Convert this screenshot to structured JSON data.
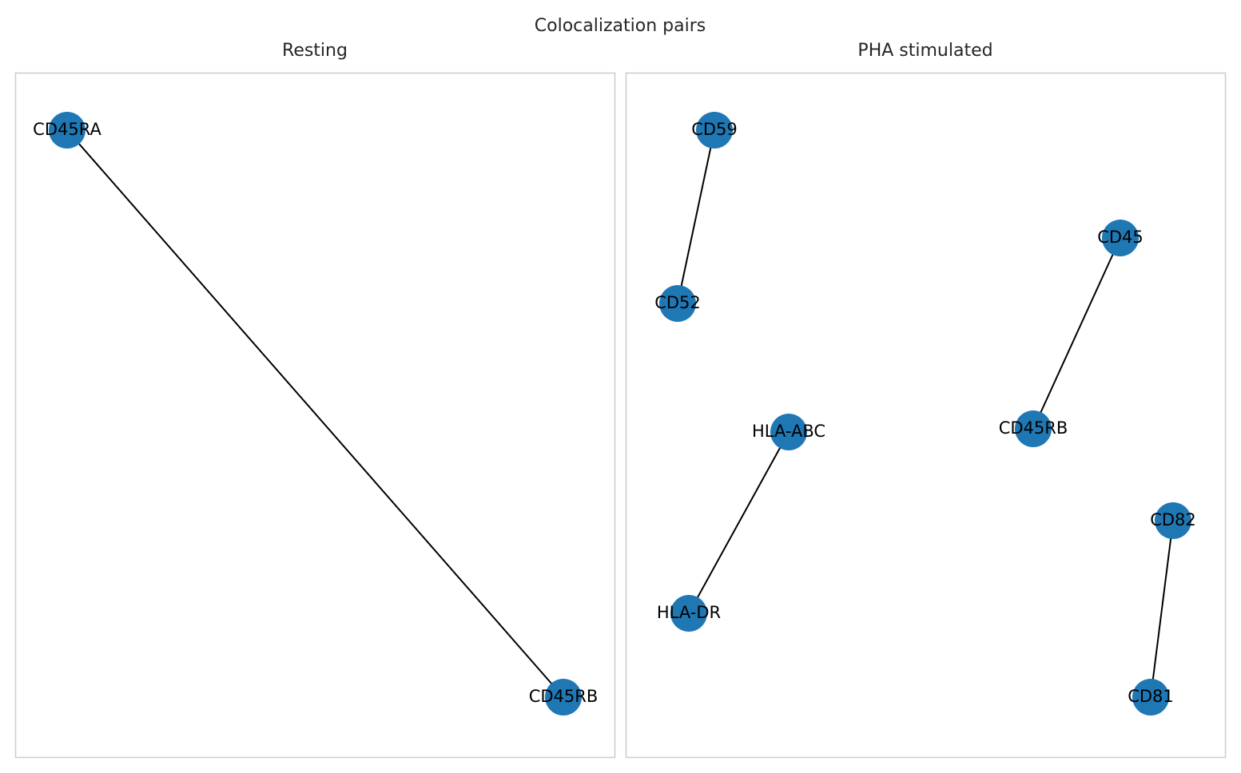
{
  "title": "Colocalization pairs",
  "panels": [
    {
      "title": "Resting",
      "pairs": [
        [
          "CD45RA",
          "CD45RB"
        ]
      ]
    },
    {
      "title": "PHA stimulated",
      "pairs": [
        [
          "CD59",
          "CD52"
        ],
        [
          "CD45",
          "CD45RB"
        ],
        [
          "HLA-ABC",
          "HLA-DR"
        ],
        [
          "CD82",
          "CD81"
        ]
      ]
    }
  ]
}
